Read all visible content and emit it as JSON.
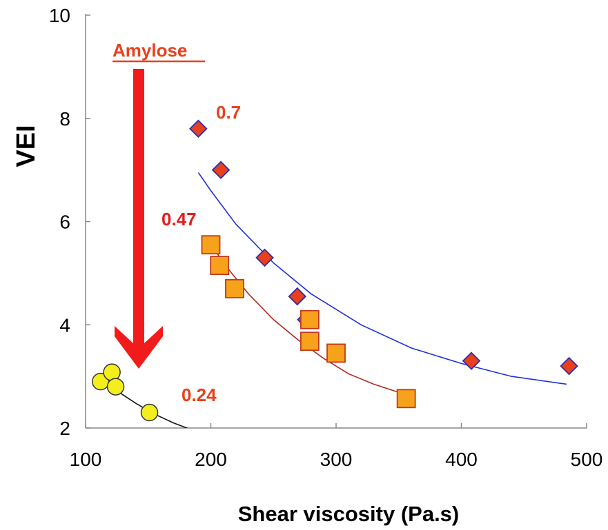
{
  "chart_data": {
    "type": "scatter",
    "xlabel": "Shear viscosity (Pa.s)",
    "ylabel": "VEI",
    "xlim": [
      100,
      500
    ],
    "ylim": [
      2,
      10
    ],
    "x_ticks": [
      100,
      200,
      300,
      400,
      500
    ],
    "y_ticks": [
      2,
      4,
      6,
      8,
      10
    ],
    "grid": false,
    "series": [
      {
        "label": "0.7",
        "marker": "diamond",
        "fill": "#e8401c",
        "stroke": "#2b2bb5",
        "trend_color": "#1f2fe0",
        "x": [
          190,
          208,
          243,
          269,
          276,
          408,
          486
        ],
        "y": [
          7.8,
          7.0,
          5.3,
          4.55,
          4.1,
          3.3,
          3.2
        ],
        "trend": {
          "x": [
            190,
            200,
            220,
            250,
            280,
            320,
            360,
            400,
            440,
            484
          ],
          "y": [
            6.95,
            6.6,
            5.95,
            5.2,
            4.6,
            4.0,
            3.55,
            3.25,
            3.0,
            2.85
          ]
        }
      },
      {
        "label": "0.47",
        "marker": "square",
        "fill": "#f7a21b",
        "stroke": "#c0391f",
        "trend_color": "#b2271f",
        "x": [
          200,
          207,
          219,
          279,
          279,
          300,
          356
        ],
        "y": [
          5.55,
          5.15,
          4.7,
          4.1,
          3.68,
          3.45,
          2.57
        ],
        "trend": {
          "x": [
            200,
            215,
            230,
            250,
            270,
            290,
            310,
            330,
            355
          ],
          "y": [
            5.55,
            5.05,
            4.6,
            4.1,
            3.7,
            3.35,
            3.05,
            2.85,
            2.65
          ]
        }
      },
      {
        "label": "0.24",
        "marker": "circle",
        "fill": "#f4ee1c",
        "stroke": "#333333",
        "trend_color": "#111111",
        "x": [
          112,
          121,
          124,
          151
        ],
        "y": [
          2.9,
          3.08,
          2.8,
          2.3
        ],
        "trend": {
          "x": [
            112,
            125,
            140,
            155,
            170,
            183
          ],
          "y": [
            2.98,
            2.72,
            2.48,
            2.27,
            2.1,
            1.98
          ]
        }
      }
    ],
    "annotations": {
      "amylose_label": "Amylose",
      "amylose_color": "#e8401c",
      "arrow_color": "#f21b1b",
      "label_07": "0.7",
      "label_047": "0.47",
      "label_024": "0.24",
      "label_07_color": "#e8401c",
      "label_047_color": "#e01f1f",
      "label_024_color": "#e8401c"
    }
  }
}
